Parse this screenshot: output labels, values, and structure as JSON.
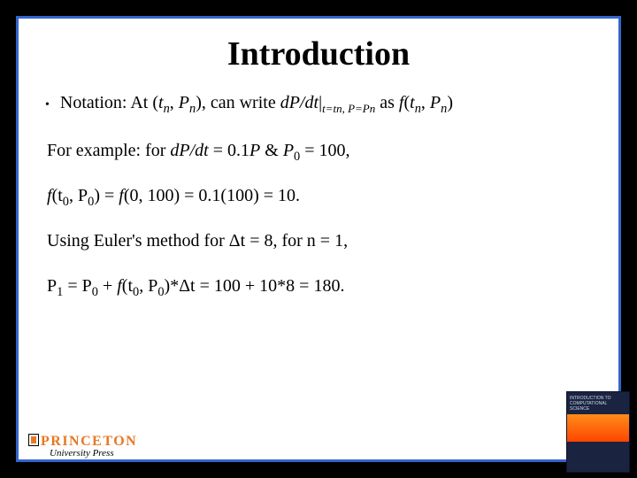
{
  "title": "Introduction",
  "bullet_prefix": "•",
  "line1_parts": {
    "a": "Notation: At (",
    "b": "t",
    "c": "n",
    "d": ", ",
    "e": "P",
    "f": "n",
    "g": "), can write ",
    "h": "dP/dt",
    "i": "|",
    "j": "t=tn, P=Pn",
    "k": " as ",
    "l": "f",
    "m": "(",
    "n": "t",
    "o": "n",
    "p": ", ",
    "q": "P",
    "r": "n",
    "s": ")"
  },
  "line2_parts": {
    "a": "For example: for ",
    "b": "dP/dt",
    "c": " = 0.1",
    "d": "P",
    "e": " & ",
    "f": "P",
    "g": "0",
    "h": " = 100,"
  },
  "line3_parts": {
    "a": "f",
    "b": "(t",
    "c": "0",
    "d": ", P",
    "e": "0",
    "f": ") =  ",
    "g": "f",
    "h": "(0, 100) = 0.1(100) = 10."
  },
  "line4_parts": {
    "a": "Using Euler's method for Δt = 8, for n = 1,"
  },
  "line5_parts": {
    "a": "P",
    "b": "1",
    "c": " = P",
    "d": "0",
    "e": " + ",
    "f": "f",
    "g": "(t",
    "h": "0",
    "i": ", P",
    "j": "0",
    "k": ")*Δt = 100 + 10*8 = 180."
  },
  "logo": {
    "main": "PRINCETON",
    "sub": "University Press"
  },
  "book": {
    "label": "INTRODUCTION TO COMPUTATIONAL SCIENCE"
  },
  "colors": {
    "border": "#3366cc",
    "bg_outer": "#000000",
    "bg_inner": "#ffffff",
    "logo_orange": "#e87722"
  }
}
